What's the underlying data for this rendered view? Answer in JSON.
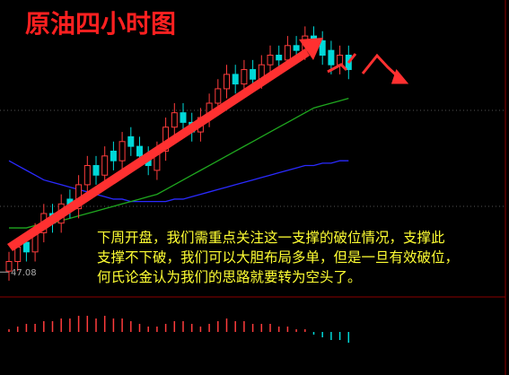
{
  "chart_data": {
    "type": "candlestick",
    "title": "原油四小时图",
    "annotation": [
      "下周开盘，我们需重点关注这一支撑的破位情况，支撑此",
      "支撑不下破，我们可以大胆布局多单，但是一旦有效破位，",
      "何氏论金认为我们的思路就要转为空头了。"
    ],
    "price_label": 47.08,
    "up_color": "#ff3c3c",
    "down_color": "#00d8d8",
    "ylim": [
      46.58,
      52.75
    ],
    "open": [
      47.1,
      47.3,
      47.7,
      47.5,
      47.9,
      48.3,
      48.1,
      48.6,
      48.4,
      48.9,
      49.3,
      49.1,
      49.6,
      49.4,
      49.9,
      49.7,
      49.5,
      49.2,
      49.6,
      50.1,
      50.4,
      50.2,
      50.0,
      50.3,
      50.6,
      50.9,
      51.2,
      51.0,
      51.3,
      51.1,
      51.4,
      51.6,
      51.5,
      51.8,
      51.7,
      52.0,
      51.9,
      51.7,
      51.4,
      51.6
    ],
    "high": [
      47.5,
      47.8,
      47.9,
      48.1,
      48.5,
      48.5,
      48.7,
      48.8,
      49.1,
      49.5,
      49.5,
      49.7,
      49.8,
      50.0,
      50.1,
      49.9,
      49.7,
      49.8,
      50.3,
      50.6,
      50.6,
      50.4,
      50.5,
      50.8,
      51.1,
      51.4,
      51.4,
      51.5,
      51.5,
      51.6,
      51.8,
      51.8,
      52.0,
      52.0,
      52.2,
      52.2,
      52.1,
      51.9,
      51.8,
      51.8
    ],
    "low": [
      46.9,
      47.1,
      47.3,
      47.3,
      47.7,
      47.9,
      47.9,
      48.2,
      48.2,
      48.7,
      48.9,
      48.9,
      49.2,
      49.2,
      49.5,
      49.3,
      49.1,
      49.0,
      49.4,
      49.9,
      50.0,
      49.8,
      49.8,
      50.1,
      50.4,
      50.7,
      50.8,
      50.8,
      50.9,
      50.9,
      51.2,
      51.3,
      51.3,
      51.5,
      51.5,
      51.7,
      51.4,
      51.2,
      51.2,
      51.1
    ],
    "close": [
      47.3,
      47.6,
      47.5,
      47.9,
      48.3,
      48.1,
      48.5,
      48.4,
      48.9,
      49.3,
      49.1,
      49.5,
      49.4,
      49.8,
      49.7,
      49.5,
      49.3,
      49.6,
      50.1,
      50.4,
      50.2,
      50.0,
      50.3,
      50.6,
      50.9,
      51.2,
      51.0,
      51.3,
      51.1,
      51.4,
      51.6,
      51.5,
      51.8,
      51.7,
      52.0,
      51.9,
      51.6,
      51.4,
      51.6,
      51.3
    ],
    "series": [
      {
        "color": "#2a2aff",
        "values": [
          49.4,
          49.3,
          49.2,
          49.1,
          49.0,
          48.95,
          48.9,
          48.85,
          48.8,
          48.75,
          48.7,
          48.65,
          48.6,
          48.6,
          48.55,
          48.55,
          48.55,
          48.55,
          48.55,
          48.6,
          48.6,
          48.65,
          48.7,
          48.75,
          48.8,
          48.85,
          48.9,
          48.95,
          49.0,
          49.05,
          49.1,
          49.15,
          49.2,
          49.25,
          49.3,
          49.3,
          49.35,
          49.35,
          49.4,
          49.4
        ]
      },
      {
        "color": "#1fa81f",
        "values": [
          48.0,
          48.0,
          48.0,
          48.05,
          48.1,
          48.1,
          48.15,
          48.2,
          48.25,
          48.3,
          48.35,
          48.4,
          48.45,
          48.5,
          48.55,
          48.6,
          48.65,
          48.7,
          48.8,
          48.9,
          49.0,
          49.1,
          49.2,
          49.3,
          49.4,
          49.5,
          49.6,
          49.7,
          49.8,
          49.9,
          50.0,
          50.1,
          50.2,
          50.3,
          50.4,
          50.5,
          50.55,
          50.6,
          50.65,
          50.7
        ]
      }
    ],
    "indicator": {
      "type": "bar",
      "ylim": [
        -0.1,
        0.1
      ],
      "up_color": "#ff3c3c",
      "down_color": "#00d8d8",
      "values": [
        0.01,
        0.02,
        0.03,
        0.03,
        0.04,
        0.04,
        0.05,
        0.05,
        0.06,
        0.06,
        0.05,
        0.06,
        0.05,
        0.05,
        0.04,
        0.03,
        0.02,
        0.02,
        0.03,
        0.04,
        0.04,
        0.03,
        0.02,
        0.03,
        0.04,
        0.05,
        0.04,
        0.04,
        0.03,
        0.03,
        0.03,
        0.02,
        0.02,
        0.01,
        0.01,
        -0.01,
        -0.02,
        -0.03,
        -0.03,
        -0.04
      ]
    }
  }
}
